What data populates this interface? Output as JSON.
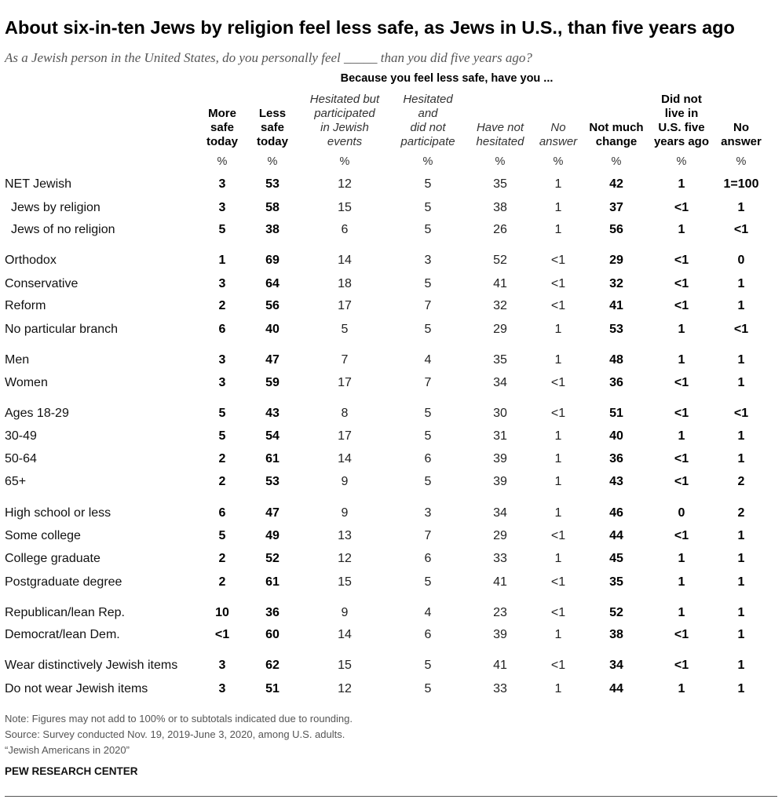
{
  "title": "About six-in-ten Jews by religion feel less safe, as Jews in U.S., than five years ago",
  "subtitle": "As a Jewish person in the United States, do you personally feel _____ than you did five years ago?",
  "chart_data": {
    "type": "table",
    "group_header": "Because you feel less safe, have you ...",
    "columns": [
      {
        "label": "More\nsafe\ntoday",
        "unit": "%"
      },
      {
        "label": "Less\nsafe\ntoday",
        "unit": "%"
      },
      {
        "label": "Hesitated but\nparticipated\nin Jewish\nevents",
        "unit": "%"
      },
      {
        "label": "Hesitated\nand\ndid not\nparticipate",
        "unit": "%"
      },
      {
        "label": "Have not\nhesitated",
        "unit": "%"
      },
      {
        "label": "No\nanswer",
        "unit": "%"
      },
      {
        "label": "Not much\nchange",
        "unit": "%"
      },
      {
        "label": "Did not\nlive in\nU.S. five\nyears ago",
        "unit": "%"
      },
      {
        "label": "No\nanswer",
        "unit": "%"
      }
    ],
    "rows": [
      {
        "label": "NET Jewish",
        "values": [
          "3",
          "53",
          "12",
          "5",
          "35",
          "1",
          "42",
          "1",
          "1=100"
        ]
      },
      {
        "label": "Jews by religion",
        "values": [
          "3",
          "58",
          "15",
          "5",
          "38",
          "1",
          "37",
          "<1",
          "1"
        ]
      },
      {
        "label": "Jews of no religion",
        "values": [
          "5",
          "38",
          "6",
          "5",
          "26",
          "1",
          "56",
          "1",
          "<1"
        ]
      },
      {
        "label": "Orthodox",
        "values": [
          "1",
          "69",
          "14",
          "3",
          "52",
          "<1",
          "29",
          "<1",
          "0"
        ]
      },
      {
        "label": "Conservative",
        "values": [
          "3",
          "64",
          "18",
          "5",
          "41",
          "<1",
          "32",
          "<1",
          "1"
        ]
      },
      {
        "label": "Reform",
        "values": [
          "2",
          "56",
          "17",
          "7",
          "32",
          "<1",
          "41",
          "<1",
          "1"
        ]
      },
      {
        "label": "No particular branch",
        "values": [
          "6",
          "40",
          "5",
          "5",
          "29",
          "1",
          "53",
          "1",
          "<1"
        ]
      },
      {
        "label": "Men",
        "values": [
          "3",
          "47",
          "7",
          "4",
          "35",
          "1",
          "48",
          "1",
          "1"
        ]
      },
      {
        "label": "Women",
        "values": [
          "3",
          "59",
          "17",
          "7",
          "34",
          "<1",
          "36",
          "<1",
          "1"
        ]
      },
      {
        "label": "Ages 18-29",
        "values": [
          "5",
          "43",
          "8",
          "5",
          "30",
          "<1",
          "51",
          "<1",
          "<1"
        ]
      },
      {
        "label": "30-49",
        "values": [
          "5",
          "54",
          "17",
          "5",
          "31",
          "1",
          "40",
          "1",
          "1"
        ]
      },
      {
        "label": "50-64",
        "values": [
          "2",
          "61",
          "14",
          "6",
          "39",
          "1",
          "36",
          "<1",
          "1"
        ]
      },
      {
        "label": "65+",
        "values": [
          "2",
          "53",
          "9",
          "5",
          "39",
          "1",
          "43",
          "<1",
          "2"
        ]
      },
      {
        "label": "High school or less",
        "values": [
          "6",
          "47",
          "9",
          "3",
          "34",
          "1",
          "46",
          "0",
          "2"
        ]
      },
      {
        "label": "Some college",
        "values": [
          "5",
          "49",
          "13",
          "7",
          "29",
          "<1",
          "44",
          "<1",
          "1"
        ]
      },
      {
        "label": "College graduate",
        "values": [
          "2",
          "52",
          "12",
          "6",
          "33",
          "1",
          "45",
          "1",
          "1"
        ]
      },
      {
        "label": "Postgraduate degree",
        "values": [
          "2",
          "61",
          "15",
          "5",
          "41",
          "<1",
          "35",
          "1",
          "1"
        ]
      },
      {
        "label": "Republican/lean Rep.",
        "values": [
          "10",
          "36",
          "9",
          "4",
          "23",
          "<1",
          "52",
          "1",
          "1"
        ]
      },
      {
        "label": "Democrat/lean Dem.",
        "values": [
          "<1",
          "60",
          "14",
          "6",
          "39",
          "1",
          "38",
          "<1",
          "1"
        ]
      },
      {
        "label": "Wear distinctively Jewish items",
        "values": [
          "3",
          "62",
          "15",
          "5",
          "41",
          "<1",
          "34",
          "<1",
          "1"
        ]
      },
      {
        "label": "Do not wear Jewish items",
        "values": [
          "3",
          "51",
          "12",
          "5",
          "33",
          "1",
          "44",
          "1",
          "1"
        ]
      }
    ]
  },
  "notes": [
    "Note: Figures may not add to 100% or to subtotals indicated due to rounding.",
    "Source: Survey conducted Nov. 19, 2019-June 3, 2020, among U.S. adults.",
    "“Jewish Americans in 2020”"
  ],
  "org": "PEW RESEARCH CENTER"
}
